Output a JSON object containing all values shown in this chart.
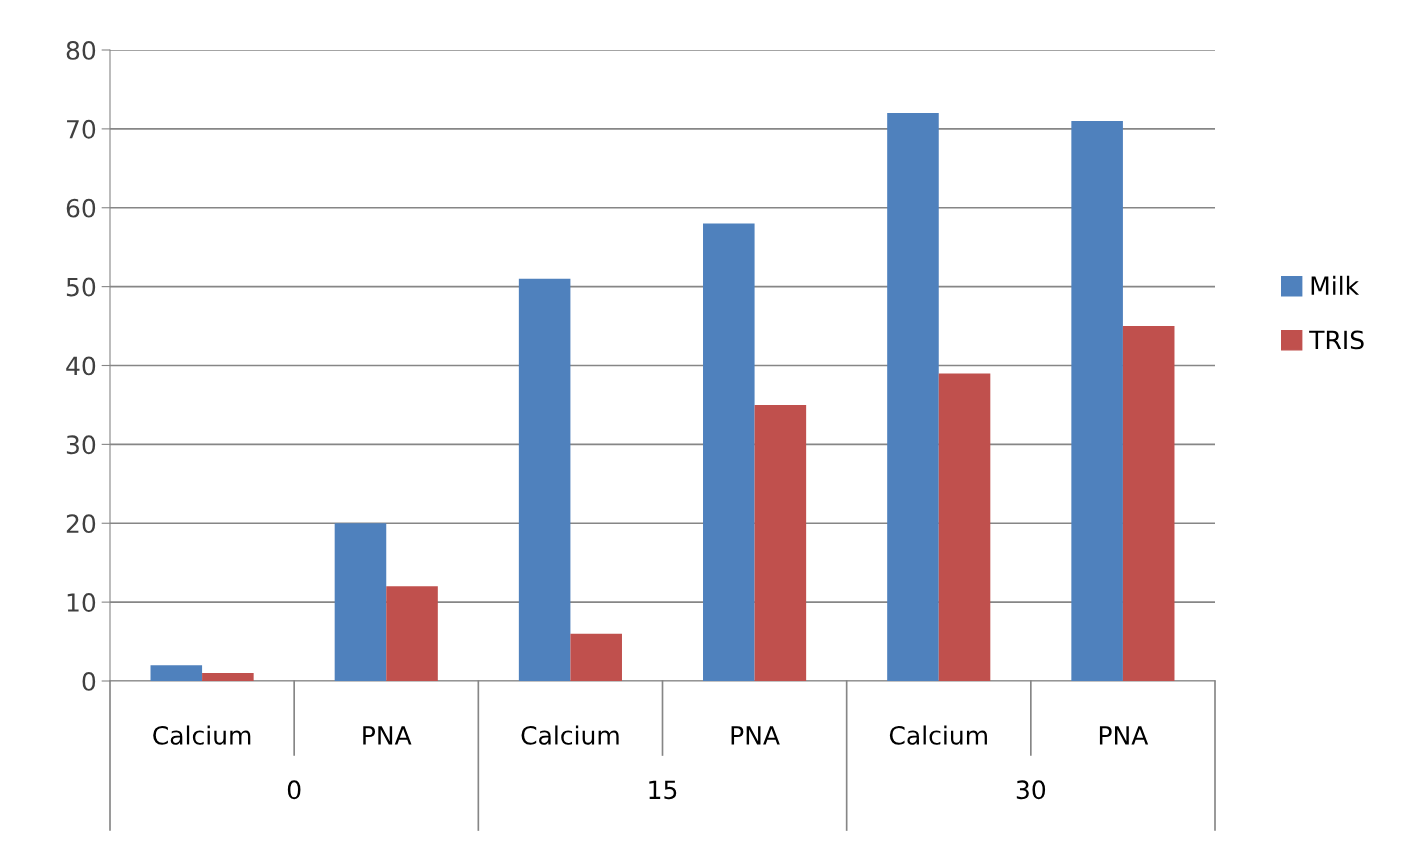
{
  "chart_data": {
    "type": "bar",
    "categories": [
      "Calcium",
      "PNA",
      "Calcium",
      "PNA",
      "Calcium",
      "PNA"
    ],
    "series": [
      {
        "name": "Milk",
        "color": "#4f81bd",
        "values": [
          2,
          20,
          51,
          58,
          72,
          71
        ]
      },
      {
        "name": "TRIS",
        "color": "#c0504d",
        "values": [
          1,
          12,
          6,
          35,
          39,
          45
        ]
      }
    ],
    "annotations": [
      "0",
      "15",
      "30"
    ],
    "ylim": [
      0,
      80
    ],
    "yticks": [
      0,
      10,
      20,
      30,
      40,
      50,
      60,
      70,
      80
    ],
    "grid": "y",
    "legend": "right"
  }
}
